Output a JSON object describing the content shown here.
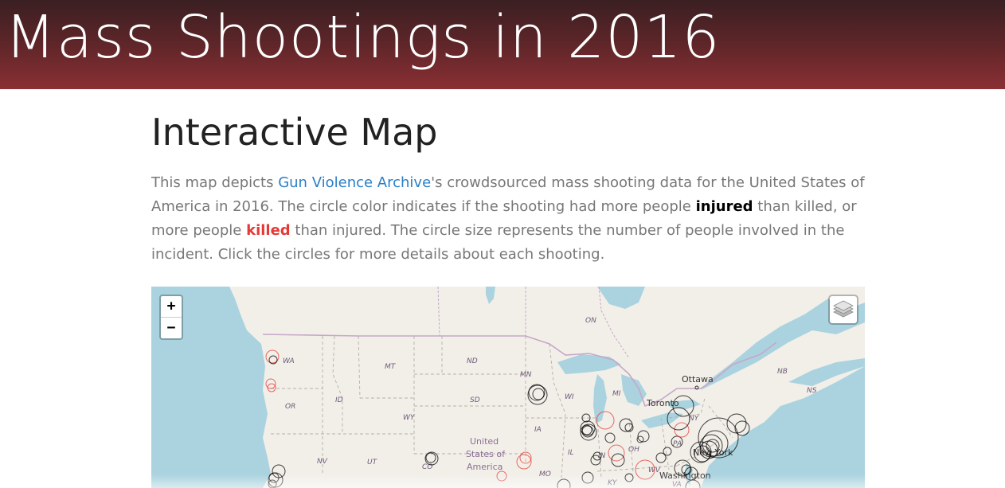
{
  "header": {
    "title": "Mass Shootings in 2016"
  },
  "section": {
    "title": "Interactive Map",
    "intro": {
      "part1": "This map depicts ",
      "link_text": "Gun Violence Archive",
      "part2": "'s crowdsourced mass shooting data for the United States of America in 2016. The circle color indicates if the shooting had more people ",
      "injured_word": "injured",
      "part3": " than killed, or more people ",
      "killed_word": "killed",
      "part4": " than injured. The circle size represents the number of people involved in the incident. Click the circles for more details about each shooting."
    }
  },
  "map": {
    "zoom_in": "+",
    "zoom_out": "−",
    "layers_icon": "layers-icon",
    "labels": {
      "on": "ON",
      "wa": "WA",
      "mt": "MT",
      "nd": "ND",
      "mn": "MN",
      "or": "OR",
      "id": "ID",
      "wy": "WY",
      "sd": "SD",
      "wi": "WI",
      "mi": "MI",
      "ia": "IA",
      "nv": "NV",
      "ut": "UT",
      "co": "CO",
      "il": "IL",
      "in": "IN",
      "oh": "OH",
      "pa": "PA",
      "ny": "NY",
      "mo": "MO",
      "ky": "KY",
      "wv": "WV",
      "va": "VA",
      "nb": "NB",
      "ns": "NS",
      "ottawa": "Ottawa",
      "toronto": "Toronto",
      "new_york": "New York",
      "washington": "Washington",
      "us_line1": "United",
      "us_line2": "States of",
      "us_line3": "America"
    },
    "colors": {
      "land": "#f2efe9",
      "water": "#aad3df",
      "injured": "#000000",
      "killed": "#e53935",
      "border": "#c6a8c8"
    }
  }
}
